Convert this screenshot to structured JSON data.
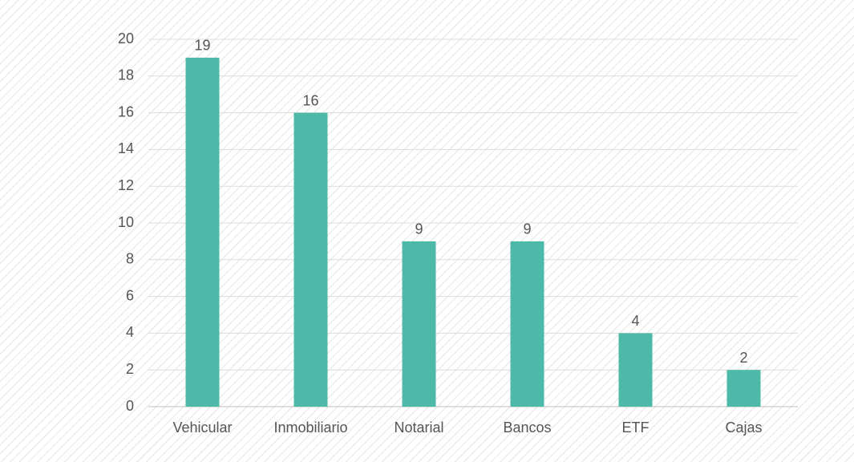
{
  "chart_data": {
    "type": "bar",
    "categories": [
      "Vehicular",
      "Inmobiliario",
      "Notarial",
      "Bancos",
      "ETF",
      "Cajas"
    ],
    "values": [
      19,
      16,
      9,
      9,
      4,
      2
    ],
    "color": "#4db9a9",
    "ylim": [
      0,
      20
    ],
    "yticks": [
      0,
      2,
      4,
      6,
      8,
      10,
      12,
      14,
      16,
      18,
      20
    ],
    "grid": true
  }
}
